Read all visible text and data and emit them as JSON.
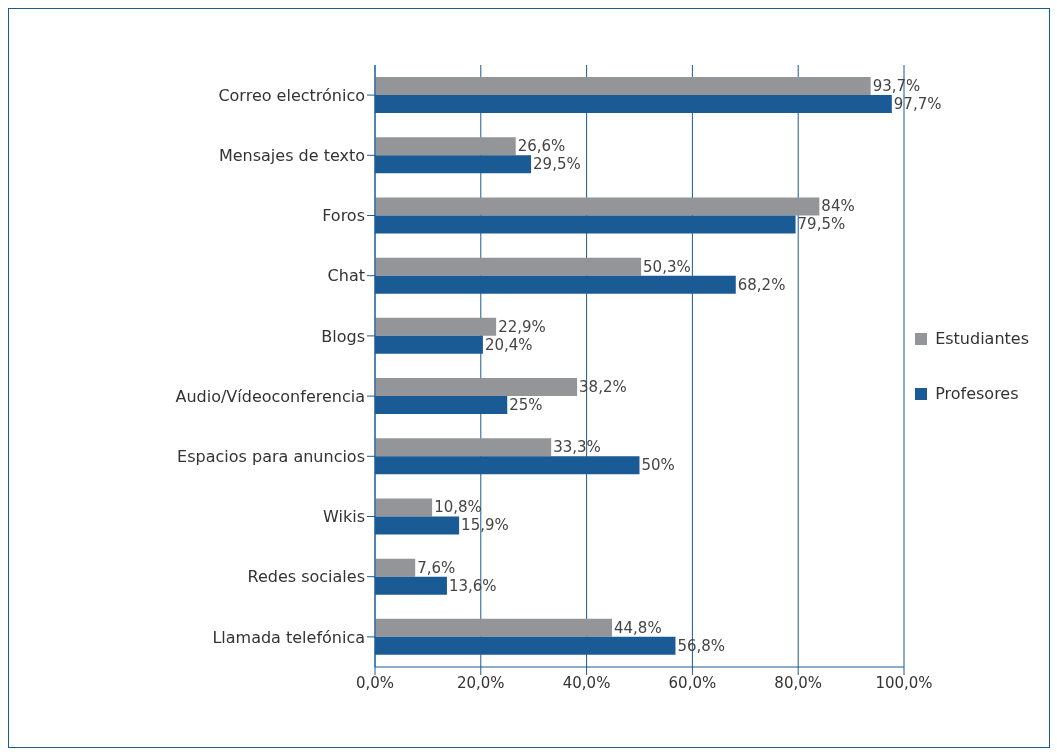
{
  "chart_data": {
    "type": "bar",
    "orientation": "horizontal",
    "categories": [
      "Correo electrónico",
      "Mensajes de texto",
      "Foros",
      "Chat",
      "Blogs",
      "Audio/Vídeoconferencia",
      "Espacios para anuncios",
      "Wikis",
      "Redes sociales",
      "Llamada telefónica"
    ],
    "series": [
      {
        "name": "Estudiantes",
        "color": "#939598",
        "values": [
          93.7,
          26.6,
          84,
          50.3,
          22.9,
          38.2,
          33.3,
          10.8,
          7.6,
          44.8
        ],
        "value_labels": [
          "93,7%",
          "26,6%",
          "84%",
          "50,3%",
          "22,9%",
          "38,2%",
          "33,3%",
          "10,8%",
          "7,6%",
          "44,8%"
        ]
      },
      {
        "name": "Profesores",
        "color": "#1a5b96",
        "values": [
          97.7,
          29.5,
          79.5,
          68.2,
          20.4,
          25,
          50,
          15.9,
          13.6,
          56.8
        ],
        "value_labels": [
          "97,7%",
          "29,5%",
          "79,5%",
          "68,2%",
          "20,4%",
          "25%",
          "50%",
          "15,9%",
          "13,6%",
          "56,8%"
        ]
      }
    ],
    "xlim": [
      0,
      100
    ],
    "xticks": [
      {
        "value": 0,
        "label": "0,0%"
      },
      {
        "value": 20,
        "label": "20,0%"
      },
      {
        "value": 40,
        "label": "40,0%"
      },
      {
        "value": 60,
        "label": "60,0%"
      },
      {
        "value": 80,
        "label": "80,0%"
      },
      {
        "value": 100,
        "label": "100,0%"
      }
    ],
    "grid": "x",
    "legend": "right"
  }
}
